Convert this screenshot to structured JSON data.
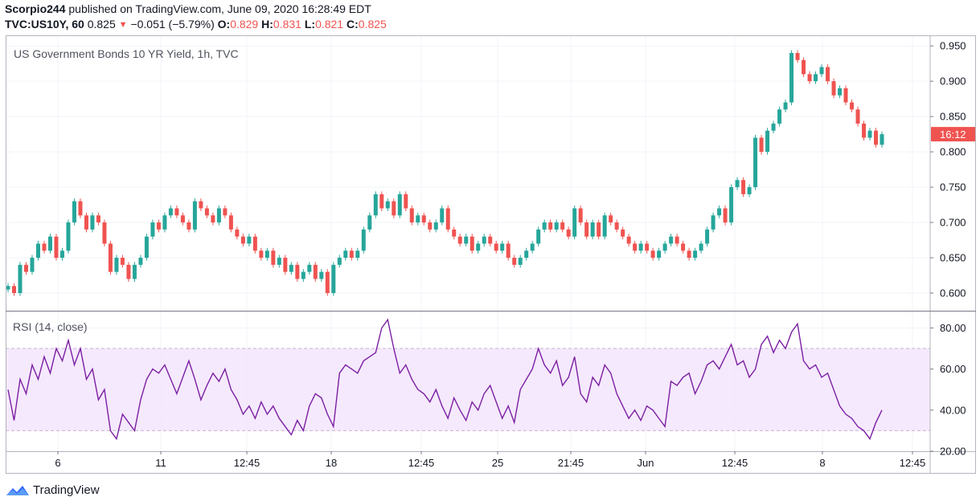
{
  "header": {
    "author": "Scorpio244",
    "published_text": "published on TradingView.com, June 09, 2020 16:28:49 EDT",
    "symbol": "TVC:US10Y, 60",
    "last": "0.825",
    "change": "−0.051 (−5.79%)",
    "o_label": "O:",
    "o_value": "0.829",
    "h_label": "H:",
    "h_value": "0.831",
    "l_label": "L:",
    "l_value": "0.821",
    "c_label": "C:",
    "c_value": "0.825"
  },
  "main_panel": {
    "title": "US Government Bonds 10 YR Yield, 1h, TVC"
  },
  "rsi_panel": {
    "title": "RSI (14, close)"
  },
  "price_tag": "16:12",
  "brand": {
    "name": "TradingView"
  },
  "colors": {
    "up": "#26a69a",
    "down": "#ef5350",
    "rsi_line": "#7b1fa2",
    "rsi_band": "#f3e3fd",
    "tag": "#ef5350",
    "grid": "#f0f3fa"
  },
  "chart_data": [
    {
      "type": "candlestick",
      "title": "US Government Bonds 10 YR Yield, 1h, TVC",
      "x_ticks": [
        "6",
        "11",
        "12:45",
        "18",
        "12:45",
        "25",
        "21:45",
        "Jun",
        "12:45",
        "8",
        "12:45"
      ],
      "y_ticks": [
        "0.600",
        "0.650",
        "0.700",
        "0.750",
        "0.800",
        "0.850",
        "0.900",
        "0.950"
      ],
      "ylim": [
        0.575,
        0.965
      ],
      "last_value": 0.825,
      "grid": true,
      "series": [
        {
          "points": [
            0.61,
            0.6,
            0.64,
            0.63,
            0.65,
            0.67,
            0.66,
            0.68,
            0.65,
            0.66,
            0.7,
            0.73,
            0.71,
            0.69,
            0.71,
            0.7,
            0.67,
            0.63,
            0.65,
            0.64,
            0.62,
            0.64,
            0.65,
            0.68,
            0.7,
            0.69,
            0.71,
            0.72,
            0.71,
            0.7,
            0.69,
            0.73,
            0.72,
            0.71,
            0.7,
            0.72,
            0.71,
            0.69,
            0.68,
            0.67,
            0.68,
            0.66,
            0.65,
            0.66,
            0.64,
            0.65,
            0.63,
            0.64,
            0.62,
            0.63,
            0.64,
            0.62,
            0.63,
            0.6,
            0.64,
            0.65,
            0.66,
            0.65,
            0.66,
            0.69,
            0.71,
            0.74,
            0.72,
            0.73,
            0.71,
            0.74,
            0.72,
            0.7,
            0.71,
            0.7,
            0.69,
            0.7,
            0.72,
            0.69,
            0.68,
            0.67,
            0.68,
            0.66,
            0.67,
            0.68,
            0.67,
            0.66,
            0.67,
            0.65,
            0.64,
            0.65,
            0.66,
            0.67,
            0.69,
            0.7,
            0.69,
            0.7,
            0.69,
            0.68,
            0.72,
            0.7,
            0.68,
            0.7,
            0.68,
            0.71,
            0.7,
            0.69,
            0.68,
            0.67,
            0.66,
            0.67,
            0.66,
            0.65,
            0.66,
            0.67,
            0.68,
            0.67,
            0.66,
            0.65,
            0.66,
            0.67,
            0.69,
            0.71,
            0.72,
            0.7,
            0.75,
            0.76,
            0.74,
            0.75,
            0.82,
            0.8,
            0.83,
            0.84,
            0.86,
            0.87,
            0.94,
            0.93,
            0.91,
            0.9,
            0.91,
            0.92,
            0.9,
            0.88,
            0.89,
            0.87,
            0.86,
            0.84,
            0.82,
            0.83,
            0.81,
            0.825
          ]
        }
      ]
    },
    {
      "type": "line",
      "title": "RSI (14, close)",
      "y_ticks": [
        "20.00",
        "40.00",
        "60.00",
        "80.00"
      ],
      "ylim": [
        20,
        88
      ],
      "band": [
        30,
        70
      ],
      "grid": true,
      "series": [
        {
          "points": [
            50,
            35,
            55,
            48,
            62,
            55,
            66,
            58,
            70,
            64,
            74,
            62,
            70,
            55,
            60,
            45,
            50,
            30,
            26,
            38,
            34,
            30,
            45,
            55,
            60,
            58,
            62,
            55,
            48,
            56,
            64,
            55,
            45,
            52,
            58,
            54,
            60,
            50,
            45,
            38,
            42,
            36,
            44,
            38,
            42,
            36,
            32,
            28,
            35,
            30,
            42,
            48,
            46,
            38,
            32,
            58,
            62,
            60,
            58,
            64,
            66,
            68,
            80,
            84,
            70,
            58,
            62,
            55,
            50,
            48,
            44,
            50,
            42,
            36,
            46,
            40,
            35,
            44,
            40,
            48,
            52,
            44,
            36,
            42,
            34,
            50,
            55,
            60,
            70,
            62,
            58,
            64,
            52,
            56,
            66,
            48,
            44,
            56,
            52,
            62,
            58,
            48,
            42,
            36,
            40,
            35,
            42,
            40,
            36,
            32,
            54,
            52,
            56,
            58,
            48,
            54,
            62,
            64,
            60,
            66,
            72,
            62,
            64,
            56,
            60,
            72,
            76,
            68,
            74,
            70,
            78,
            82,
            64,
            60,
            62,
            56,
            58,
            50,
            42,
            38,
            36,
            32,
            30,
            26,
            34,
            40
          ]
        }
      ]
    }
  ]
}
